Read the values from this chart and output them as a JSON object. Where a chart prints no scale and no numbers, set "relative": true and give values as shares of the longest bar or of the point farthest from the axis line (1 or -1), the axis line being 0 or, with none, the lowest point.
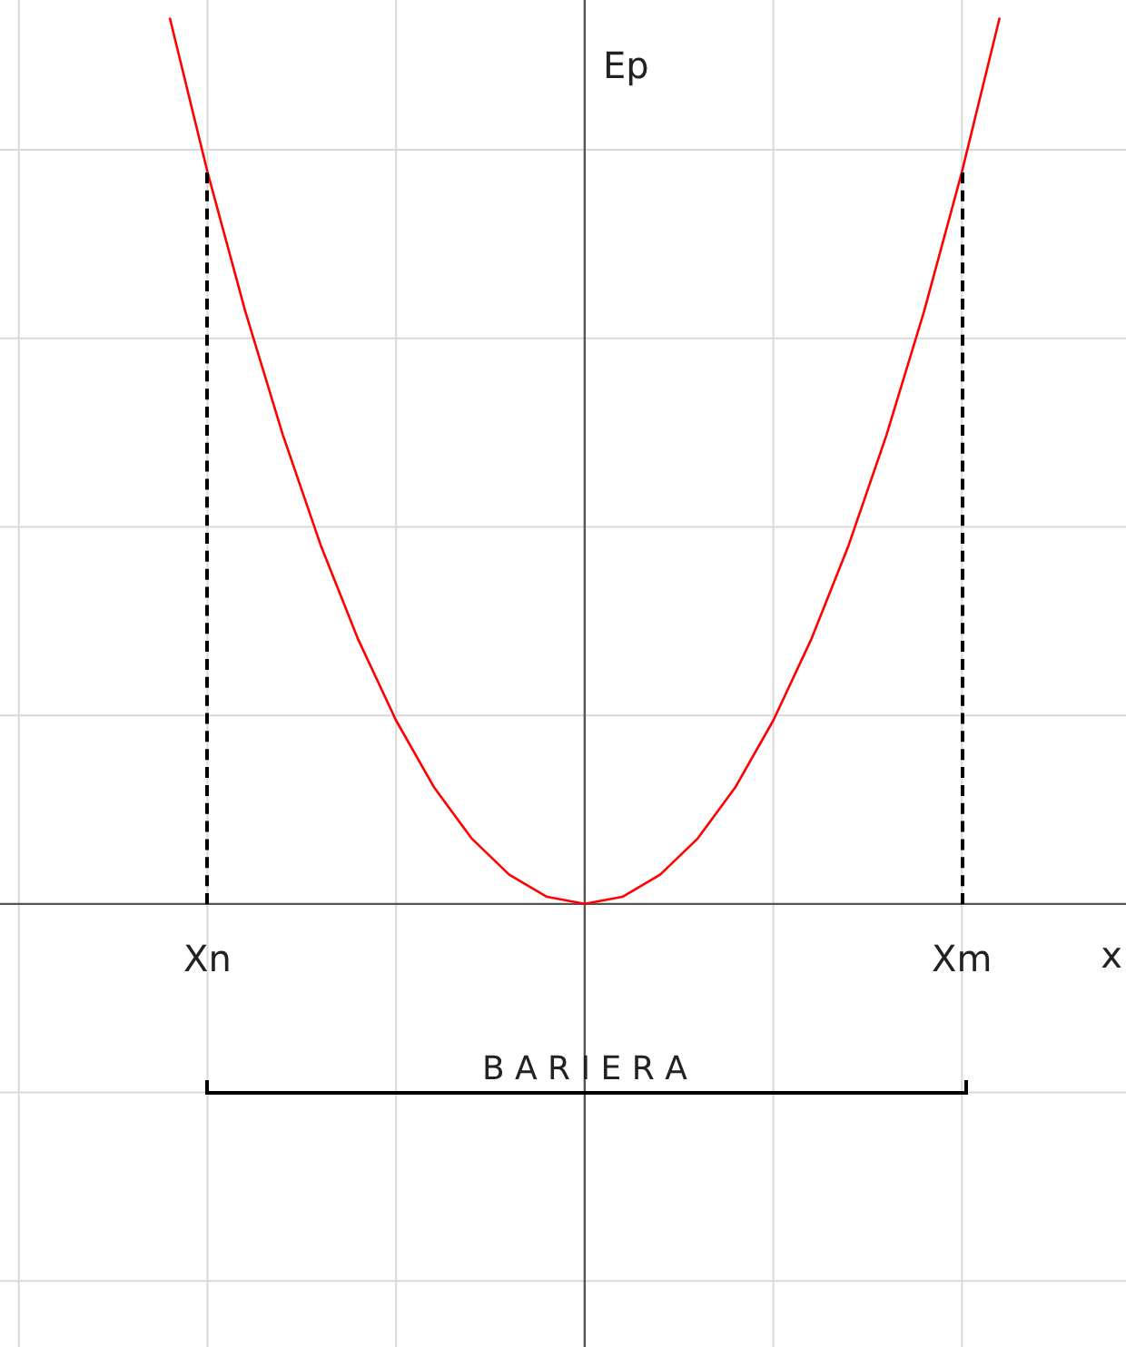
{
  "chart_data": {
    "type": "line",
    "relative": true,
    "xlabel": "x",
    "ylabel": "Ep",
    "categories": [
      null,
      "Xn",
      null,
      null,
      null,
      null,
      null,
      null,
      null,
      null,
      null,
      null,
      null,
      null,
      null,
      null,
      null,
      null,
      null,
      null,
      null,
      "Xm",
      null
    ],
    "series": [
      {
        "color": "#ff0000",
        "values": [
          1,
          0.826,
          0.669,
          0.529,
          0.405,
          0.298,
          0.207,
          0.132,
          0.074,
          0.033,
          0.008,
          0,
          0.008,
          0.033,
          0.074,
          0.132,
          0.207,
          0.298,
          0.405,
          0.529,
          0.669,
          0.826,
          1
        ]
      }
    ],
    "grid": true,
    "legend": false,
    "annotations": [
      "B A R I E R A"
    ]
  }
}
